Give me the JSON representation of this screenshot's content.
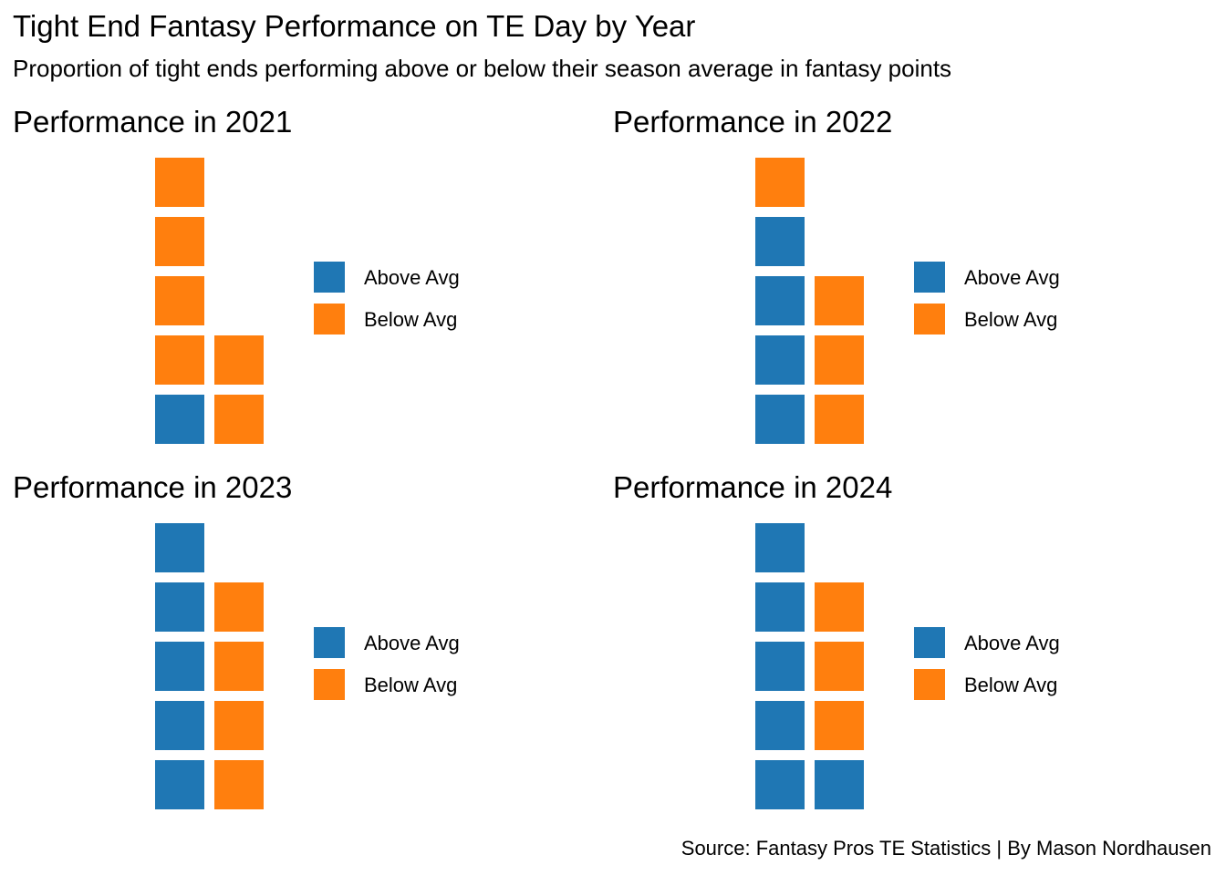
{
  "header": {
    "title": "Tight End Fantasy Performance on TE Day by Year",
    "subtitle": "Proportion of tight ends performing above or below their season average in fantasy points"
  },
  "footer": {
    "caption": "Source: Fantasy Pros TE Statistics | By Mason Nordhausen"
  },
  "colors": {
    "Above Avg": "#1f77b4",
    "Below Avg": "#ff7f0e"
  },
  "chart_data": [
    {
      "type": "waffle",
      "title": "Performance in 2021",
      "legend": {
        "entries": [
          "Above Avg",
          "Below Avg"
        ],
        "placement": "right"
      },
      "grid": {
        "columns": 2,
        "rows": 5,
        "fill_order": "column-wise, bottom-up"
      },
      "categories": [
        "Above Avg",
        "Below Avg"
      ],
      "values": [
        1,
        6
      ]
    },
    {
      "type": "waffle",
      "title": "Performance in 2022",
      "legend": {
        "entries": [
          "Above Avg",
          "Below Avg"
        ],
        "placement": "right"
      },
      "grid": {
        "columns": 2,
        "rows": 5,
        "fill_order": "column-wise, bottom-up"
      },
      "categories": [
        "Above Avg",
        "Below Avg"
      ],
      "values": [
        4,
        4
      ]
    },
    {
      "type": "waffle",
      "title": "Performance in 2023",
      "legend": {
        "entries": [
          "Above Avg",
          "Below Avg"
        ],
        "placement": "right"
      },
      "grid": {
        "columns": 2,
        "rows": 5,
        "fill_order": "column-wise, bottom-up"
      },
      "categories": [
        "Above Avg",
        "Below Avg"
      ],
      "values": [
        5,
        4
      ]
    },
    {
      "type": "waffle",
      "title": "Performance in 2024",
      "legend": {
        "entries": [
          "Above Avg",
          "Below Avg"
        ],
        "placement": "right"
      },
      "grid": {
        "columns": 2,
        "rows": 5,
        "fill_order": "column-wise, bottom-up"
      },
      "categories": [
        "Above Avg",
        "Below Avg"
      ],
      "values": [
        6,
        3
      ]
    }
  ]
}
